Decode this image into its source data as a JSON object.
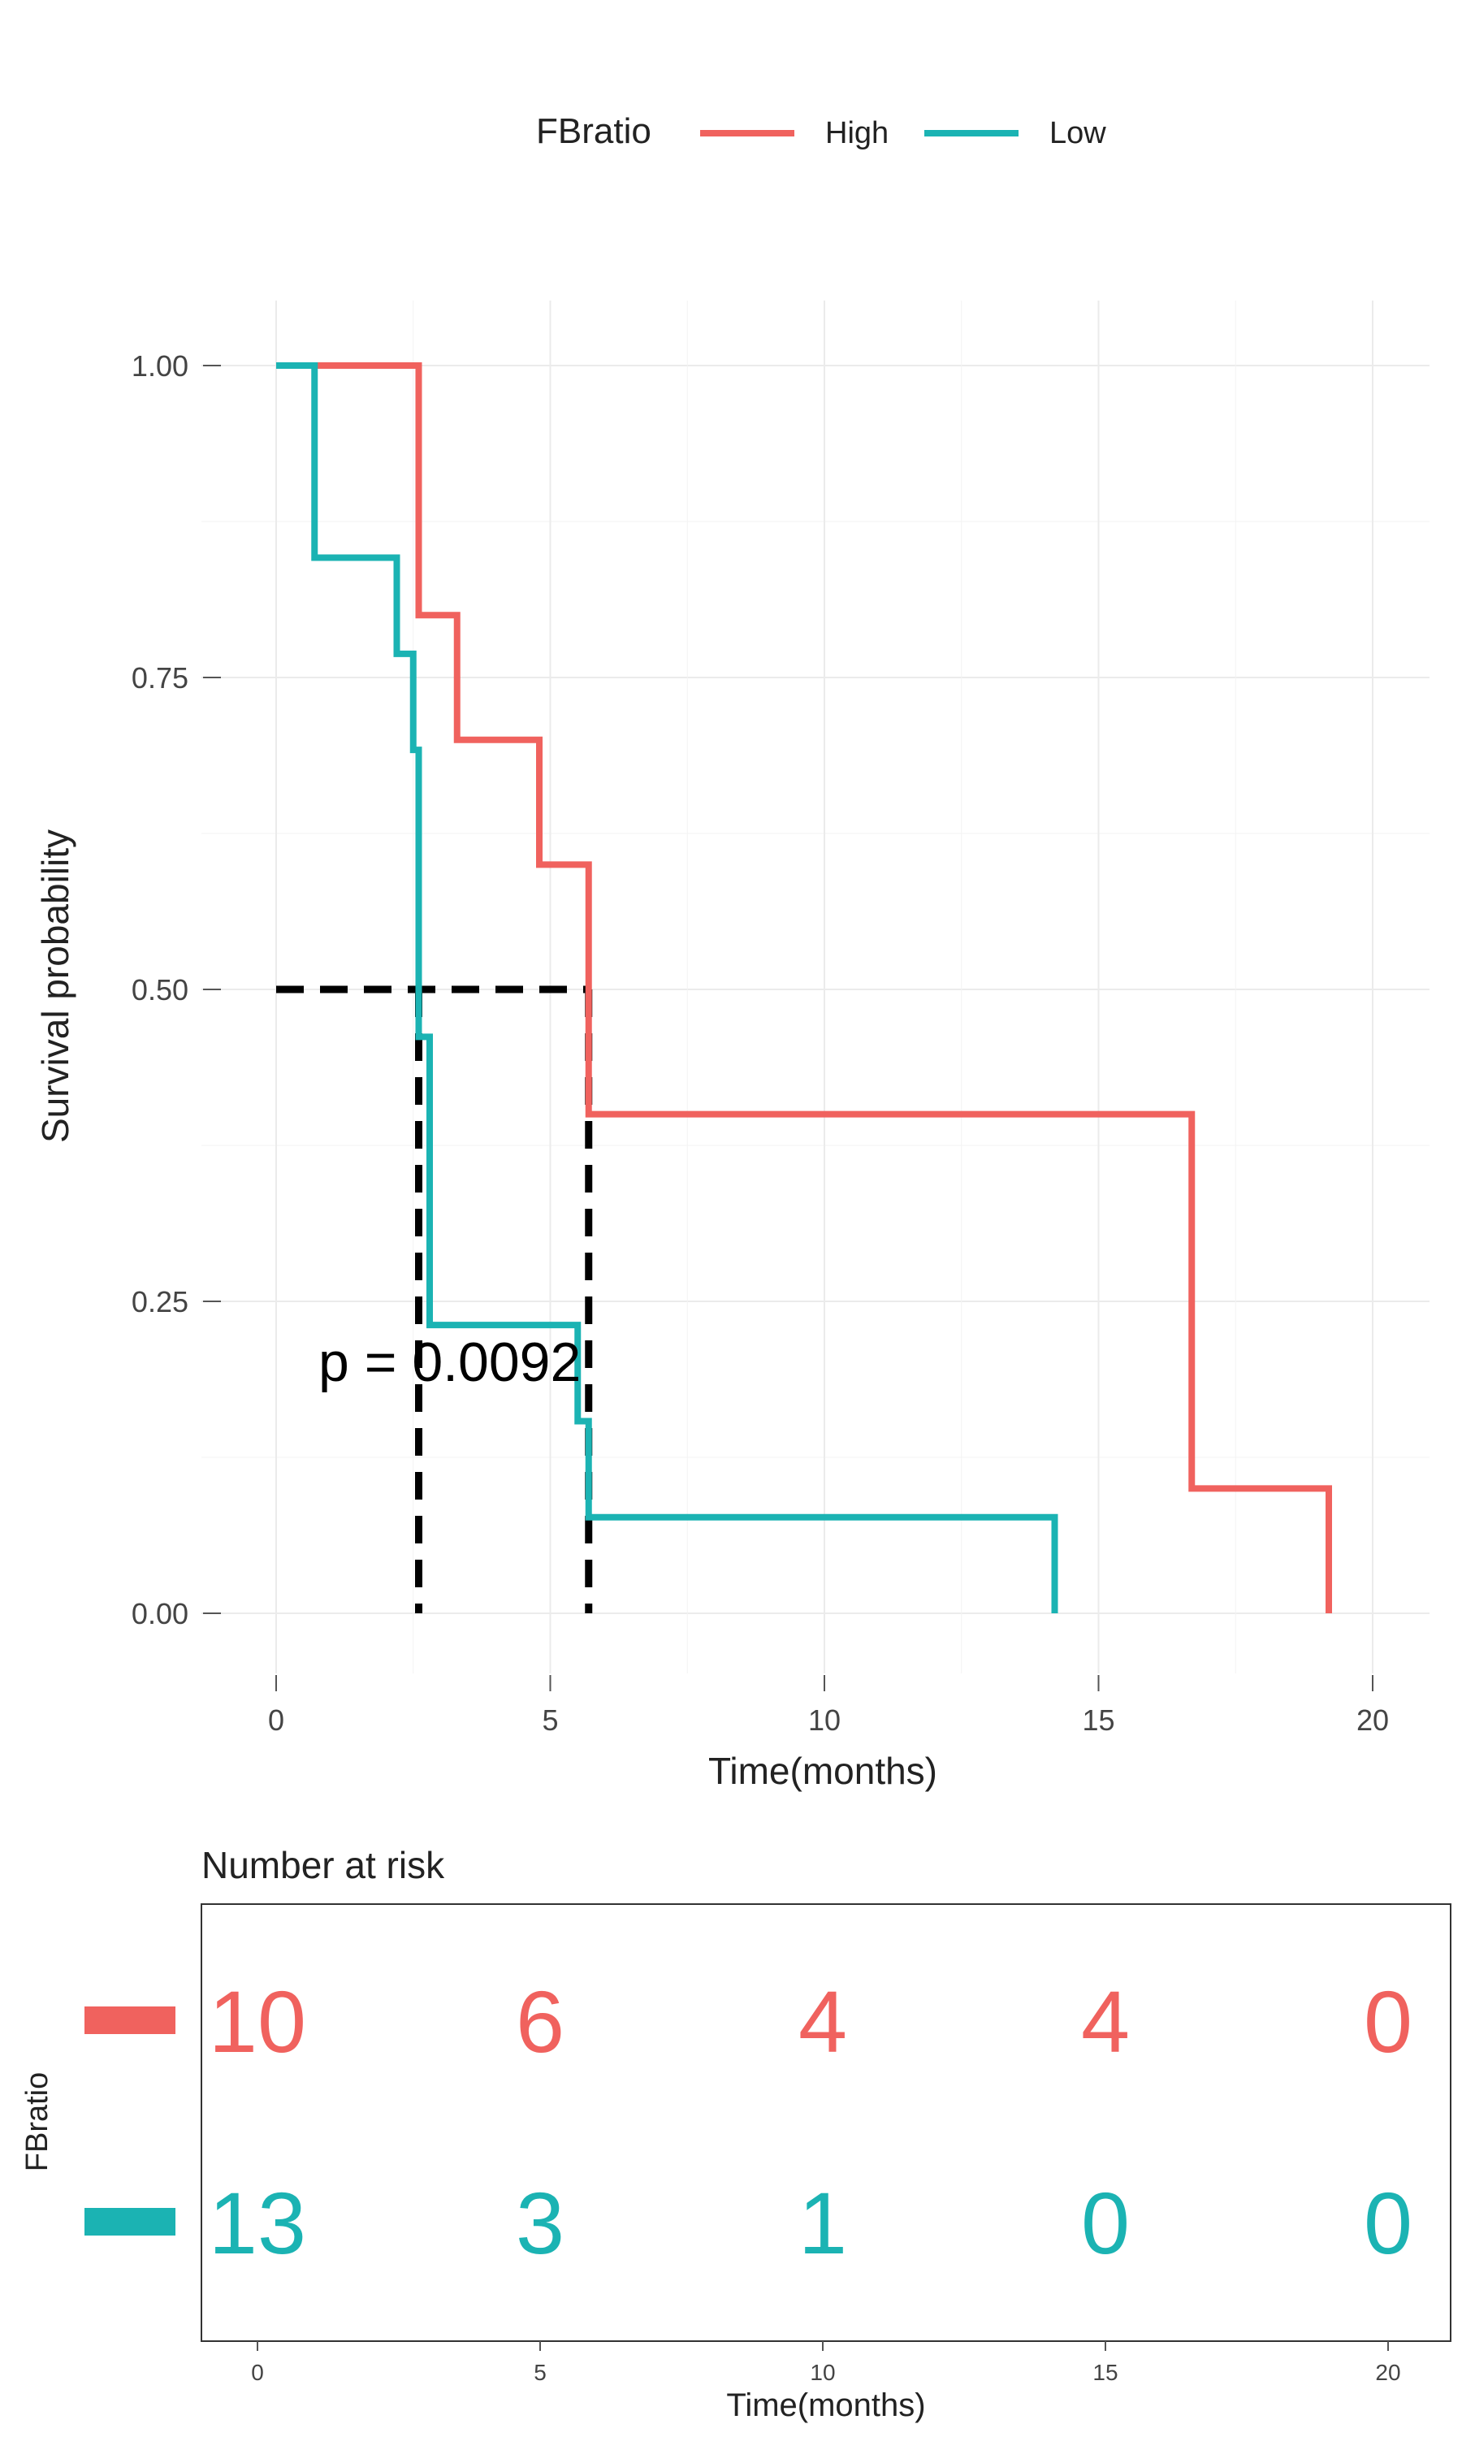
{
  "colors": {
    "high": "#F0625E",
    "low": "#1BB3B3",
    "median": "#000000",
    "grid": "#EBEBEB",
    "text": "#222222",
    "axis": "#555555"
  },
  "legend": {
    "title": "FBratio",
    "items": [
      {
        "label": "High",
        "color": "#F0625E"
      },
      {
        "label": "Low",
        "color": "#1BB3B3"
      }
    ]
  },
  "chart_data": [
    {
      "type": "line",
      "step": true,
      "xlabel": "Time(months)",
      "ylabel": "Survival probability",
      "xlim": [
        0,
        21
      ],
      "ylim": [
        0,
        1
      ],
      "x_ticks": [
        "0",
        "5",
        "10",
        "15",
        "20"
      ],
      "y_ticks": [
        "0.00",
        "0.25",
        "0.50",
        "0.75",
        "1.00"
      ],
      "grid": true,
      "legend_position": "top",
      "annotation": "p = 0.0092",
      "series": [
        {
          "name": "High",
          "color": "#F0625E",
          "x": [
            0,
            2.6,
            3.3,
            4.8,
            5.7,
            16.7,
            19.2
          ],
          "y": [
            1.0,
            0.8,
            0.7,
            0.6,
            0.4,
            0.1,
            0.0
          ]
        },
        {
          "name": "Low",
          "color": "#1BB3B3",
          "x": [
            0,
            0.7,
            2.2,
            2.5,
            2.6,
            2.8,
            5.5,
            5.7,
            14.2
          ],
          "y": [
            1.0,
            0.846,
            0.769,
            0.692,
            0.462,
            0.231,
            0.154,
            0.077,
            0.0
          ]
        }
      ],
      "median_lines": {
        "y": 0.5,
        "x": [
          2.6,
          5.7
        ]
      }
    },
    {
      "type": "table",
      "title": "Number at risk",
      "ylabel": "FBratio",
      "xlabel": "Time(months)",
      "x_ticks": [
        "0",
        "5",
        "10",
        "15",
        "20"
      ],
      "rows": [
        {
          "name": "High",
          "color": "#F0625E",
          "values": [
            "10",
            "6",
            "4",
            "4",
            "0"
          ]
        },
        {
          "name": "Low",
          "color": "#1BB3B3",
          "values": [
            "13",
            "3",
            "1",
            "0",
            "0"
          ]
        }
      ]
    }
  ]
}
